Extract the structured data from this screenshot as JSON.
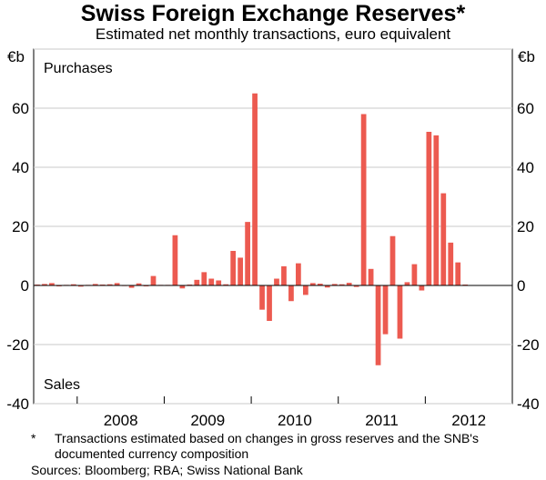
{
  "title": "Swiss Foreign Exchange Reserves*",
  "subtitle": "Estimated net monthly transactions, euro equivalent",
  "footnote_marker": "*",
  "footnote": "Transactions estimated based on changes in gross reserves and the SNB's documented currency composition",
  "sources": "Sources: Bloomberg; RBA; Swiss National Bank",
  "colors": {
    "bar": "#ec5a50",
    "axis": "#000000",
    "grid": "#c8c8c8"
  },
  "chart_data": {
    "type": "bar",
    "title": "Swiss Foreign Exchange Reserves*",
    "subtitle": "Estimated net monthly transactions, euro equivalent",
    "unit_left": "€b",
    "unit_right": "€b",
    "annotations": [
      "Purchases",
      "Sales"
    ],
    "ylim": [
      -40,
      80
    ],
    "yticks": [
      -40,
      -20,
      0,
      20,
      40,
      60
    ],
    "grid": true,
    "x_year_labels": [
      "2008",
      "2009",
      "2010",
      "2011",
      "2012"
    ],
    "start": "2007-07",
    "series": [
      {
        "values": [
          0.3,
          0.5,
          0.8,
          -0.3,
          0.2,
          0.4,
          -0.4,
          0.2,
          0.5,
          0.3,
          0.4,
          0.8,
          -0.2,
          -0.8,
          0.7,
          -0.3,
          3.2,
          0.2,
          0.2,
          17.0,
          -1.0,
          0.3,
          1.9,
          4.5,
          2.3,
          1.7,
          0.4,
          11.7,
          9.4,
          21.5,
          65.0,
          -8.2,
          -12.0,
          2.3,
          6.5,
          -5.3,
          7.5,
          -3.2,
          0.8,
          0.6,
          -0.7,
          0.5,
          0.4,
          0.9,
          -0.5,
          58.0,
          5.6,
          -27.0,
          -16.5,
          16.7,
          -18.0,
          1.1,
          7.2,
          -1.7,
          52.0,
          50.8,
          31.2,
          14.5,
          7.8,
          0.3
        ]
      }
    ]
  }
}
